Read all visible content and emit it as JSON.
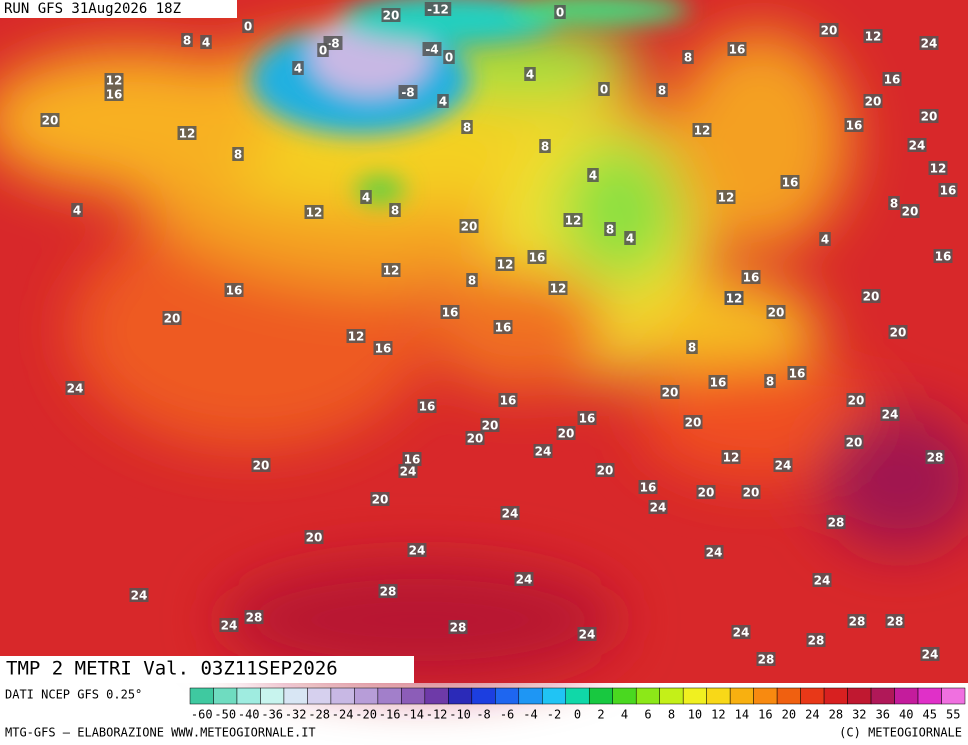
{
  "header": {
    "run": "RUN GFS 31Aug2026 18Z"
  },
  "map": {
    "title": "TMP 2 METRI Val. 03Z11SEP2026",
    "isotherm_labels": [
      8,
      4,
      0,
      20,
      -12,
      0,
      -8,
      0,
      4,
      -4,
      0,
      4,
      12,
      16,
      -8,
      4,
      0,
      8,
      8,
      16,
      20,
      12,
      24,
      16,
      20,
      20,
      16,
      24,
      12,
      16,
      20,
      12,
      8,
      8,
      12,
      8,
      4,
      4,
      8,
      12,
      4,
      16,
      12,
      8,
      20,
      20,
      12,
      8,
      4,
      4,
      16,
      12,
      12,
      12,
      16,
      8,
      12,
      16,
      20,
      12,
      16,
      20,
      16,
      20,
      16,
      12,
      16,
      20,
      8,
      16,
      16,
      8,
      24,
      20,
      20,
      16,
      16,
      16,
      24,
      20,
      20,
      20,
      20,
      24,
      20,
      28,
      12,
      24,
      20,
      16,
      24,
      20,
      16,
      20,
      20,
      20,
      24,
      24,
      28,
      20,
      24,
      24,
      24,
      24,
      28,
      24,
      28,
      24,
      28,
      28,
      28,
      24,
      24,
      28,
      28,
      24
    ]
  },
  "legend": {
    "source": "DATI NCEP GFS 0.25°",
    "ticks": [
      -60,
      -50,
      -40,
      -36,
      -32,
      -28,
      -24,
      -20,
      -16,
      -14,
      -12,
      -10,
      -8,
      -6,
      -4,
      -2,
      0,
      2,
      4,
      6,
      8,
      10,
      12,
      14,
      16,
      20,
      24,
      28,
      32,
      36,
      40,
      45,
      55
    ],
    "colors": [
      "#3fc9a0",
      "#6fdcc0",
      "#9fece0",
      "#c8f4ee",
      "#d8e6f4",
      "#d6d0ee",
      "#c8b8e4",
      "#b79dd8",
      "#a27fca",
      "#8c5db8",
      "#6e3aa8",
      "#2b2ab8",
      "#1c3ee0",
      "#1e66f0",
      "#1e96f4",
      "#20c4f4",
      "#10d8a8",
      "#18c840",
      "#4ad820",
      "#8ce818",
      "#c4f018",
      "#f0f020",
      "#f8d818",
      "#f8b010",
      "#f88a10",
      "#f06010",
      "#e83818",
      "#d82020",
      "#c01830",
      "#b01858",
      "#c41c9c",
      "#e030c8",
      "#f070e0"
    ]
  },
  "footer": {
    "left": "MTG-GFS — ELABORAZIONE WWW.METEOGIORNALE.IT",
    "right": "(C) METEOGIORNALE"
  }
}
